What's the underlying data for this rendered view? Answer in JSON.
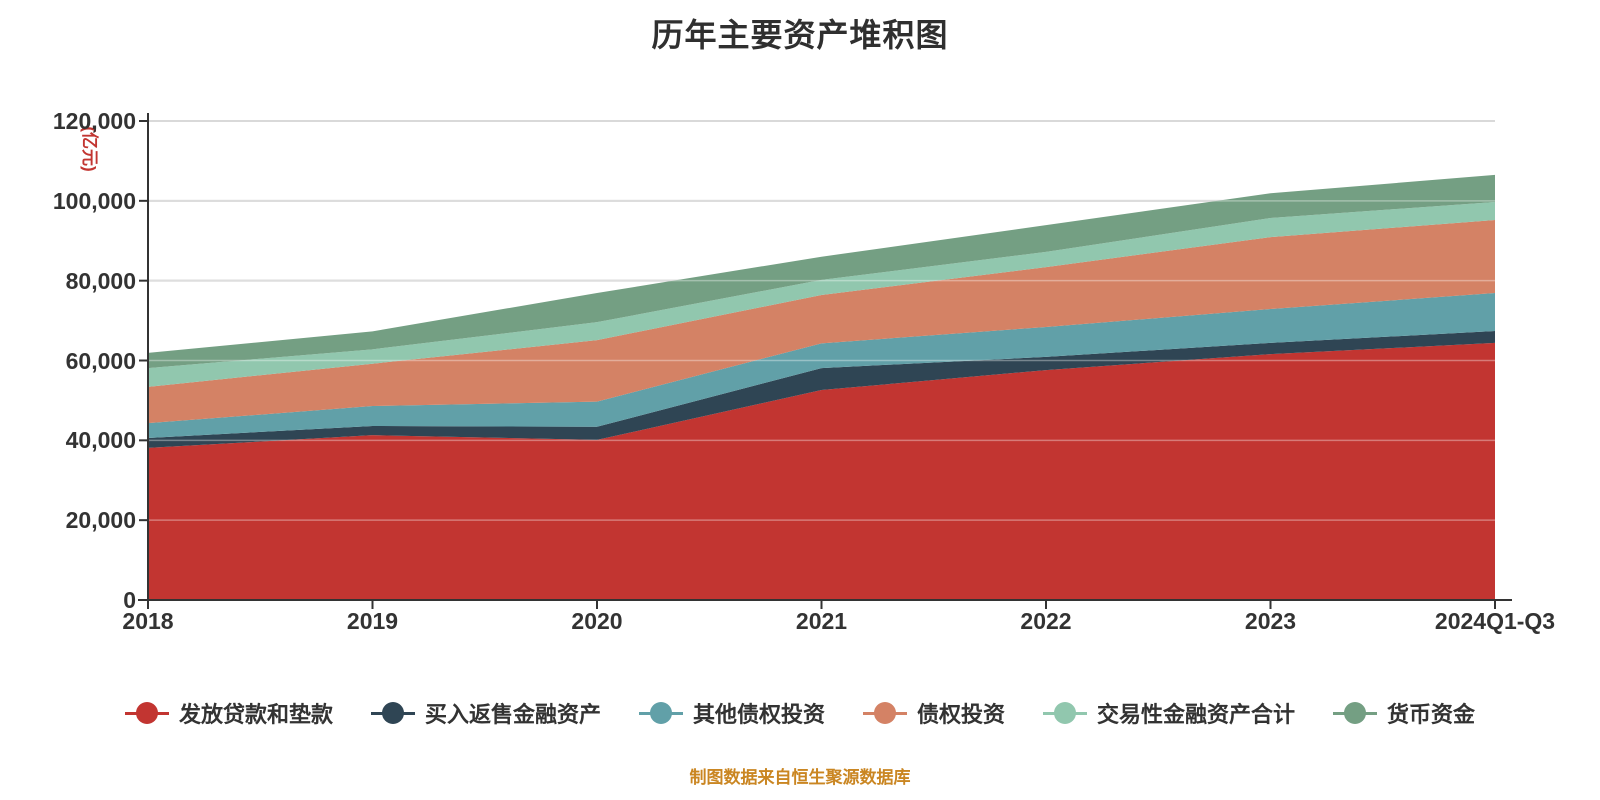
{
  "title": "历年主要资产堆积图",
  "footer": "制图数据来自恒生聚源数据库",
  "y_axis": {
    "unit_label": "(亿元)",
    "tick_labels": [
      "0",
      "20,000",
      "40,000",
      "60,000",
      "80,000",
      "100,000",
      "120,000"
    ],
    "tick_values": [
      0,
      20000,
      40000,
      60000,
      80000,
      100000,
      120000
    ]
  },
  "chart_data": {
    "type": "area",
    "stacked": true,
    "title": "历年主要资产堆积图",
    "ylabel": "(亿元)",
    "ylim": [
      0,
      120000
    ],
    "grid": true,
    "legend_position": "bottom",
    "categories": [
      "2018",
      "2019",
      "2020",
      "2021",
      "2022",
      "2023",
      "2024Q1-Q3"
    ],
    "series": [
      {
        "name": "发放贷款和垫款",
        "color": "#c23531",
        "values": [
          38100,
          41300,
          40100,
          52600,
          57600,
          61600,
          64400
        ]
      },
      {
        "name": "买入返售金融资产",
        "color": "#2f4554",
        "values": [
          2500,
          2300,
          3300,
          5500,
          3300,
          2800,
          3000
        ]
      },
      {
        "name": "其他债权投资",
        "color": "#61a0a8",
        "values": [
          3700,
          5000,
          6300,
          6200,
          7500,
          8500,
          9500
        ]
      },
      {
        "name": "债权投资",
        "color": "#d48265",
        "values": [
          9100,
          10600,
          15400,
          12100,
          15000,
          18000,
          18300
        ]
      },
      {
        "name": "交易性金融资产合计",
        "color": "#91c7ae",
        "values": [
          4700,
          3600,
          4500,
          3800,
          3800,
          4800,
          4500
        ]
      },
      {
        "name": "货币资金",
        "color": "#749f83",
        "values": [
          3800,
          4500,
          7300,
          5800,
          6700,
          6200,
          6800
        ]
      }
    ]
  },
  "style": {
    "axis_color": "#333333",
    "grid_color": "#cccccc",
    "label_color": "#333333",
    "title_color": "#2f2f2f",
    "unit_color": "#c23531",
    "footer_color": "#ca8622",
    "background": "#ffffff"
  }
}
